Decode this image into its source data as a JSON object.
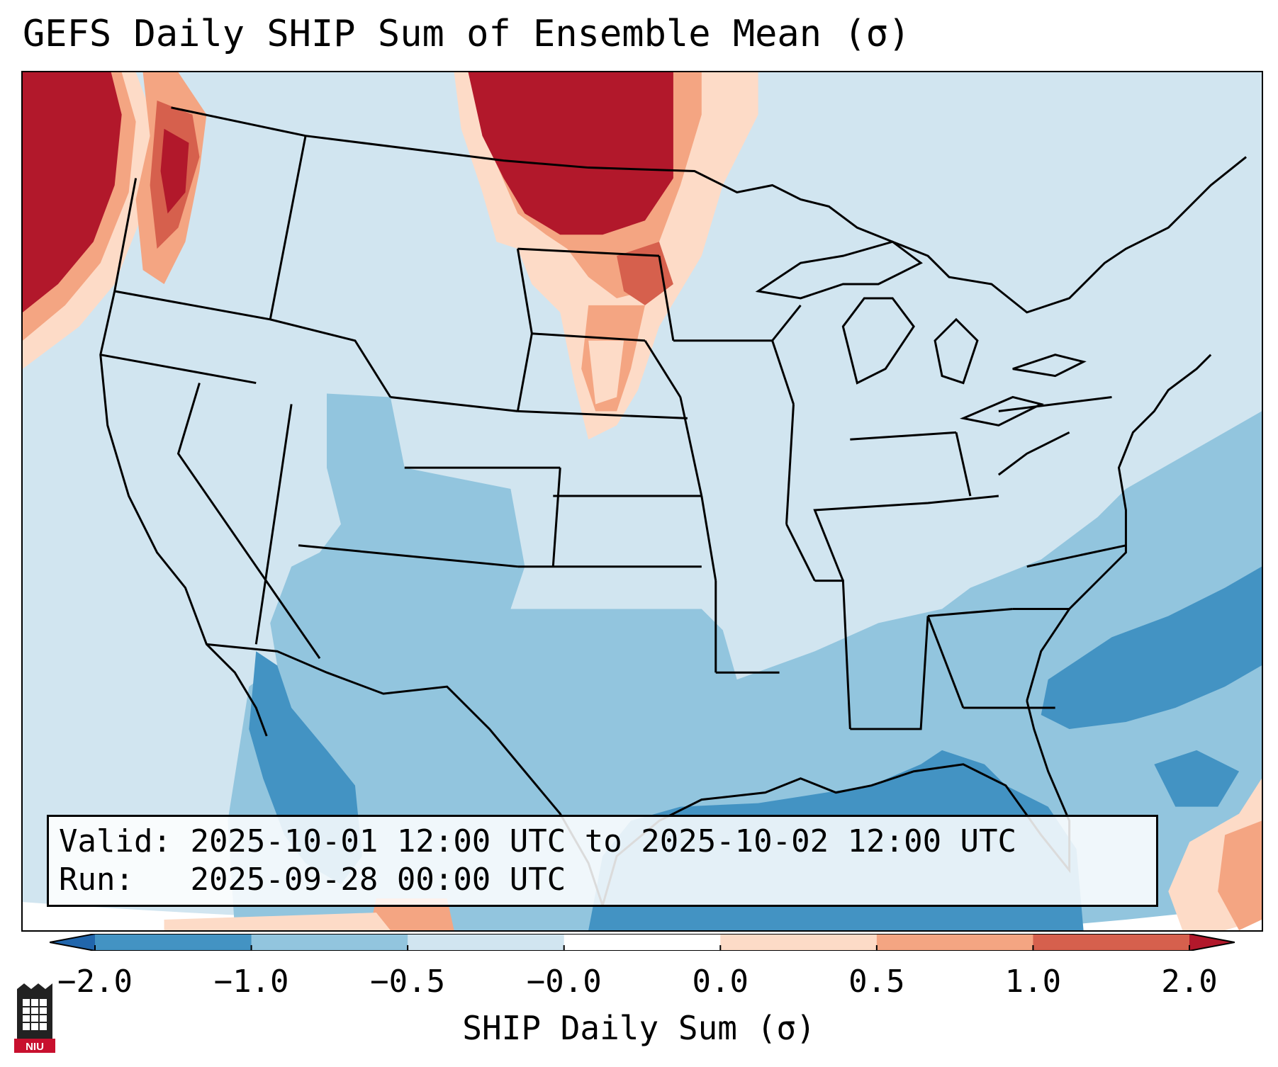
{
  "title": "GEFS Daily SHIP Sum of Ensemble Mean (σ)",
  "valid_label": "Valid:",
  "valid_value": "2025-10-01 12:00 UTC to 2025-10-02 12:00 UTC",
  "run_label": "Run:",
  "run_value": "2025-09-28 00:00 UTC",
  "colorbar": {
    "label": "SHIP Daily Sum (σ)",
    "ticks": [
      "−2.0",
      "−1.0",
      "−0.5",
      "−0.0",
      "0.0",
      "0.5",
      "1.0",
      "2.0"
    ],
    "colors": {
      "below_min": "#2166ac",
      "bin_neg2_neg1": "#4393c3",
      "bin_neg1_neg05": "#92c5de",
      "bin_neg05_0": "#d1e5f0",
      "bin_0_0": "#ffffff",
      "bin_0_05": "#fddbc7",
      "bin_05_1": "#f4a582",
      "bin_1_2": "#d6604d",
      "above_max": "#b2182b"
    }
  },
  "map": {
    "projection": "Lambert Conformal (CONUS)",
    "region": "Continental United States",
    "features": [
      "state-borders",
      "coastlines",
      "country-borders"
    ]
  },
  "logo": {
    "text": "NIU",
    "icon": "niu-logo-icon"
  }
}
